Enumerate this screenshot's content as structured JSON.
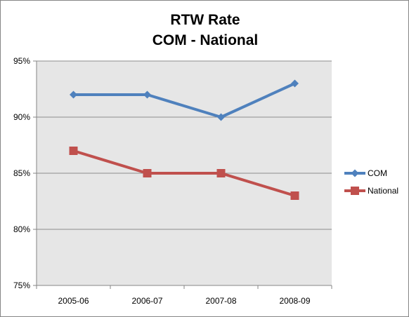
{
  "chart_data": {
    "type": "line",
    "title_lines": [
      "RTW Rate",
      "COM - National"
    ],
    "categories": [
      "2005-06",
      "2006-07",
      "2007-08",
      "2008-09"
    ],
    "series": [
      {
        "name": "COM",
        "values": [
          92,
          92,
          90,
          93
        ],
        "color": "#4F81BD",
        "marker": "diamond"
      },
      {
        "name": "National",
        "values": [
          87,
          85,
          85,
          83
        ],
        "color": "#C0504D",
        "marker": "square"
      }
    ],
    "ylim": [
      75,
      95
    ],
    "yticks": [
      "75%",
      "80%",
      "85%",
      "90%",
      "95%"
    ],
    "ytick_values": [
      75,
      80,
      85,
      90,
      95
    ],
    "grid": true,
    "legend_position": "right",
    "plot_background": "#E6E6E6",
    "gridline_color": "#8C8C8C"
  }
}
